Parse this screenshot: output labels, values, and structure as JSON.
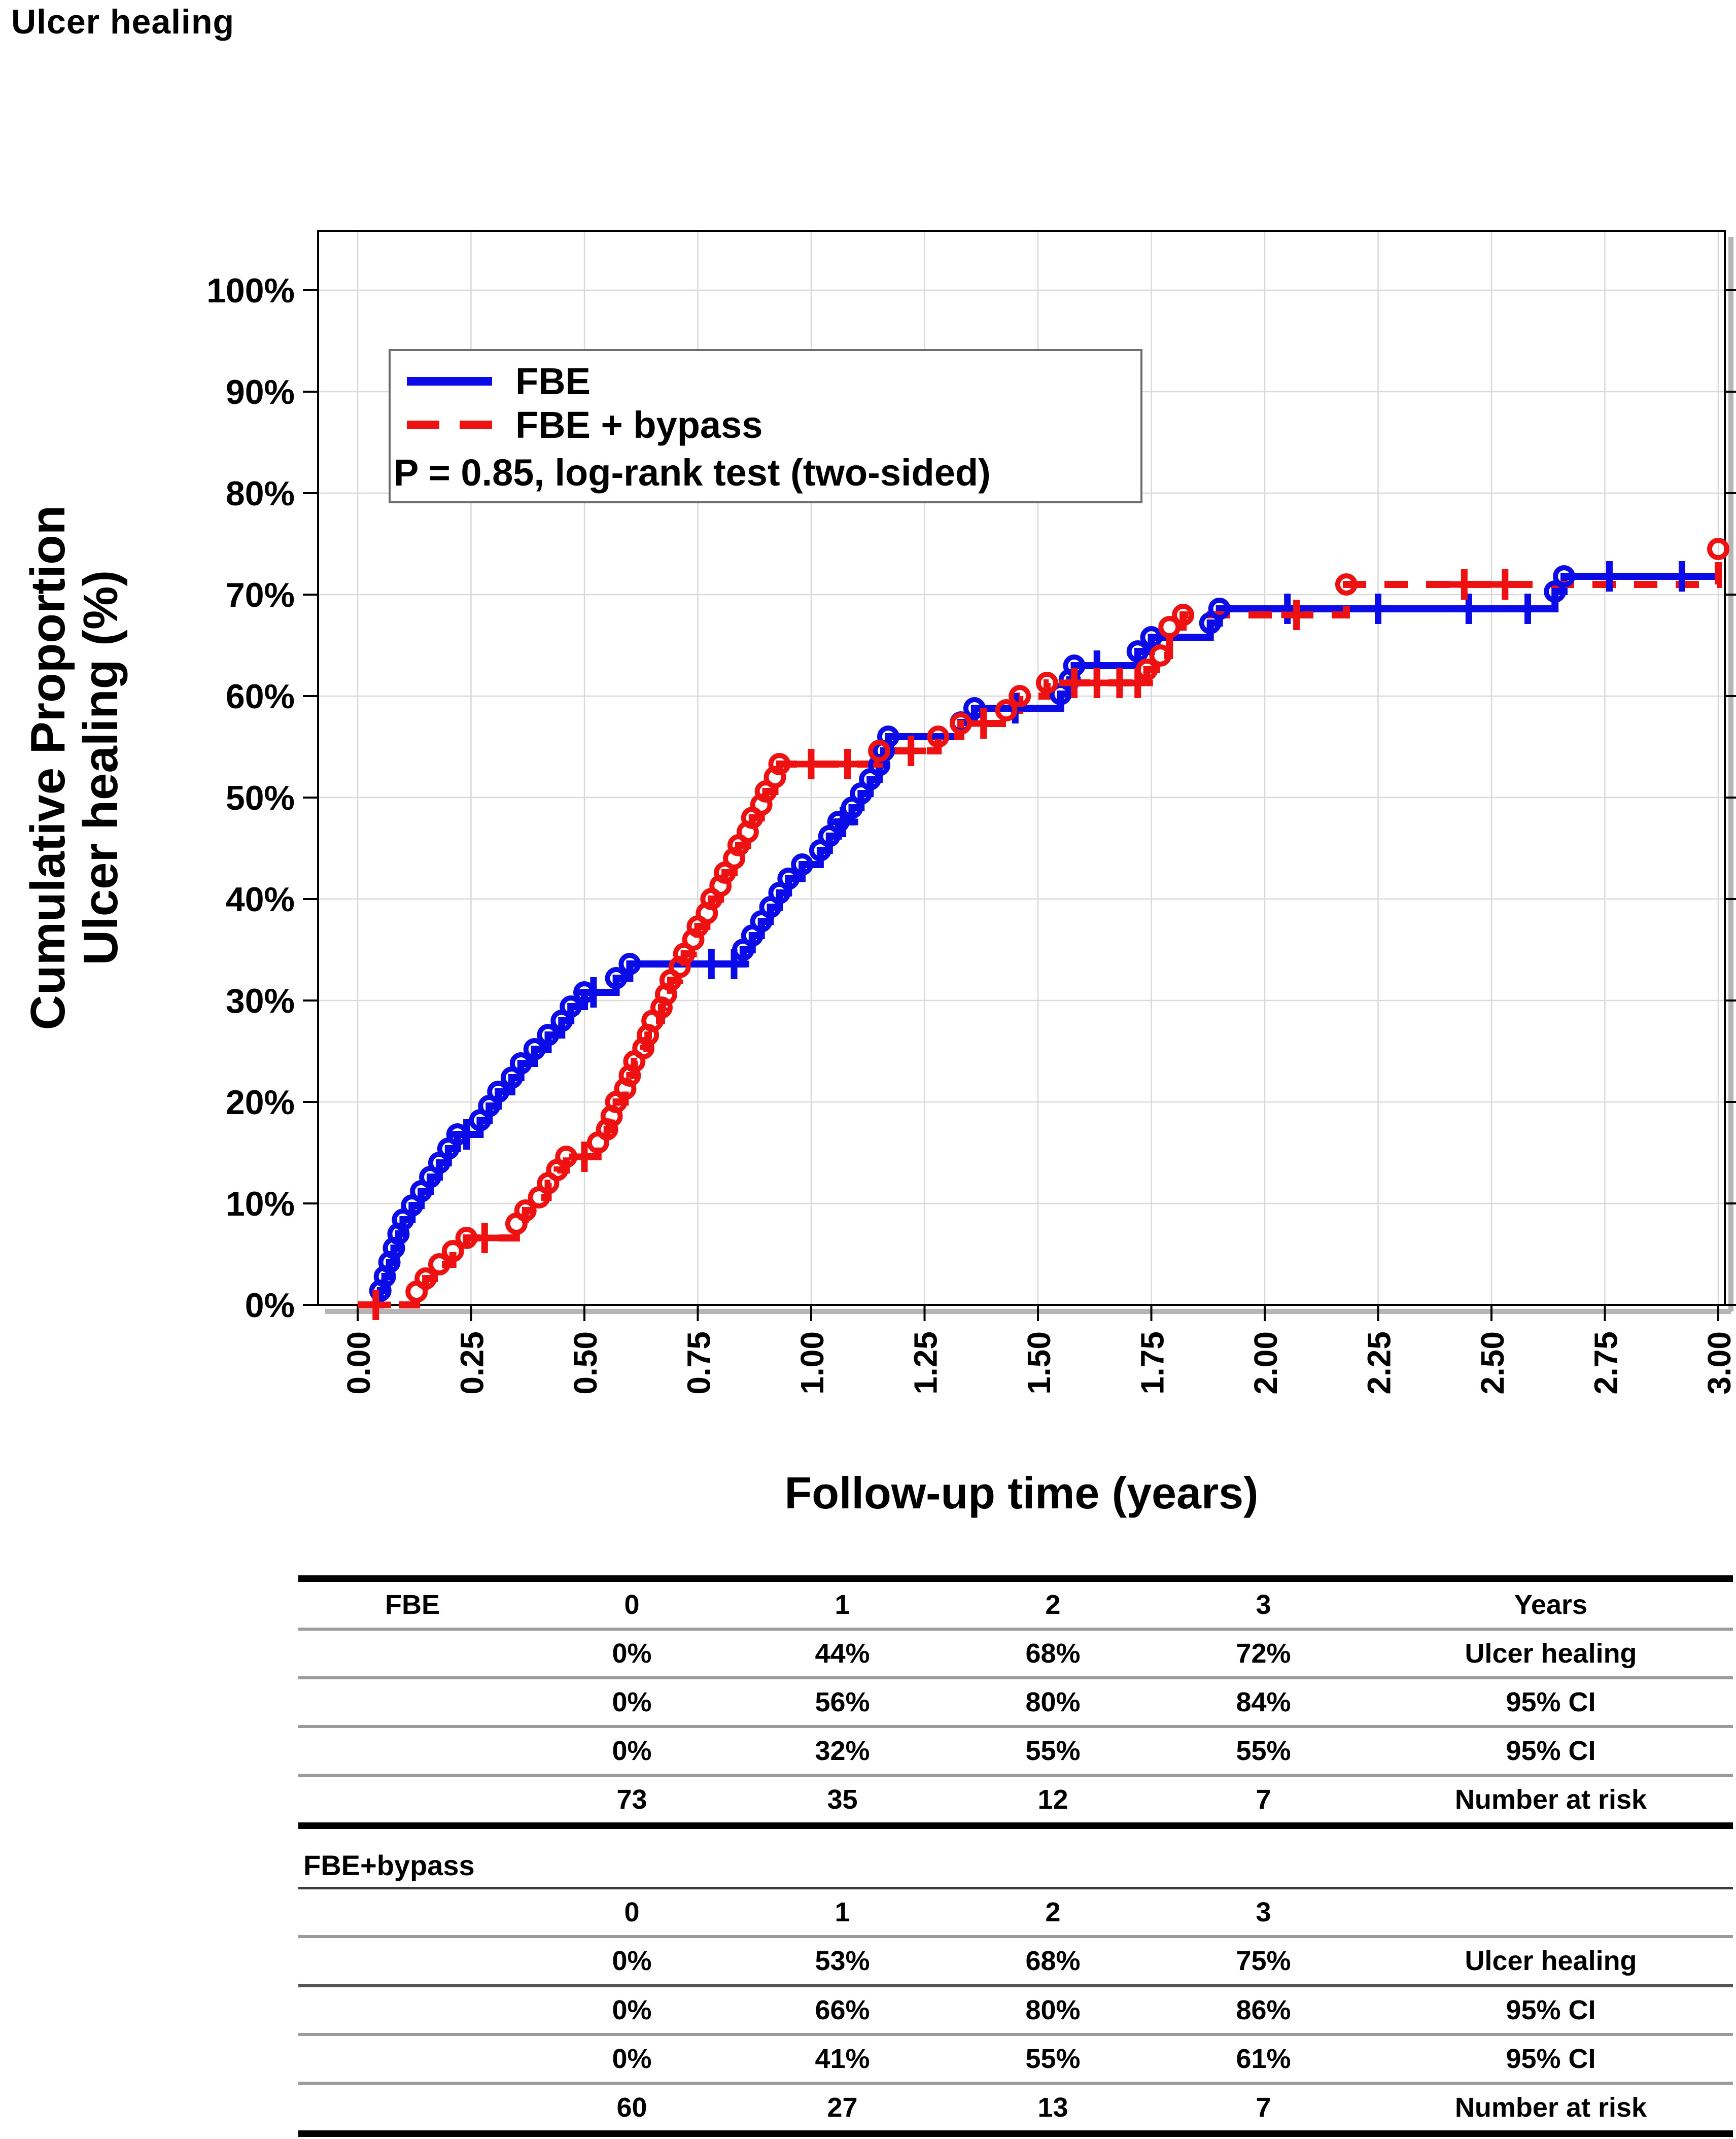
{
  "title": "Ulcer healing",
  "colors": {
    "fbe": "#0b0be8",
    "fbe_bypass": "#ee1111",
    "gridline": "#d9d9d9",
    "frame": "#000000",
    "frame_shadow": "#b5b5b5",
    "table_rule_light": "#9a9a9a",
    "table_rule_dark": "#555555"
  },
  "chart_data": {
    "type": "line",
    "subtype": "kaplan-meier-step",
    "title": "Ulcer healing",
    "xlabel": "Follow-up time (years)",
    "ylabel_line1": "Cumulative Proportion",
    "ylabel_line2": "Ulcer healing (%)",
    "xlim": [
      0,
      3
    ],
    "ylim": [
      0,
      100
    ],
    "grid": true,
    "x_ticks": [
      "0.00",
      "0.25",
      "0.50",
      "0.75",
      "1.00",
      "1.25",
      "1.50",
      "1.75",
      "2.00",
      "2.25",
      "2.50",
      "2.75",
      "3.00"
    ],
    "x_tick_values": [
      0,
      0.25,
      0.5,
      0.75,
      1,
      1.25,
      1.5,
      1.75,
      2,
      2.25,
      2.5,
      2.75,
      3
    ],
    "y_ticks": [
      "0%",
      "10%",
      "20%",
      "30%",
      "40%",
      "50%",
      "60%",
      "70%",
      "80%",
      "90%",
      "100%"
    ],
    "y_tick_values": [
      0,
      10,
      20,
      30,
      40,
      50,
      60,
      70,
      80,
      90,
      100
    ],
    "legend": {
      "position": "upper-left",
      "series": [
        {
          "label": "FBE",
          "style": "solid"
        },
        {
          "label": "FBE + bypass",
          "style": "dashed"
        }
      ],
      "note": "P = 0.85, log-rank test (two-sided)"
    },
    "series": [
      {
        "name": "FBE",
        "style": "solid",
        "marker": "circle",
        "censor_marker": "plus",
        "steps": [
          [
            0.05,
            1.4
          ],
          [
            0.06,
            2.8
          ],
          [
            0.07,
            4.2
          ],
          [
            0.08,
            5.6
          ],
          [
            0.09,
            7.0
          ],
          [
            0.1,
            8.4
          ],
          [
            0.12,
            9.8
          ],
          [
            0.14,
            11.2
          ],
          [
            0.16,
            12.6
          ],
          [
            0.18,
            14.0
          ],
          [
            0.2,
            15.4
          ],
          [
            0.22,
            16.8
          ],
          [
            0.27,
            18.2
          ],
          [
            0.29,
            19.6
          ],
          [
            0.31,
            21.0
          ],
          [
            0.34,
            22.4
          ],
          [
            0.36,
            23.8
          ],
          [
            0.39,
            25.2
          ],
          [
            0.42,
            26.6
          ],
          [
            0.45,
            28.0
          ],
          [
            0.47,
            29.4
          ],
          [
            0.5,
            30.8
          ],
          [
            0.57,
            32.2
          ],
          [
            0.6,
            33.6
          ],
          [
            0.85,
            35.0
          ],
          [
            0.87,
            36.4
          ],
          [
            0.89,
            37.8
          ],
          [
            0.91,
            39.2
          ],
          [
            0.93,
            40.6
          ],
          [
            0.95,
            42.0
          ],
          [
            0.98,
            43.4
          ],
          [
            1.02,
            44.8
          ],
          [
            1.04,
            46.2
          ],
          [
            1.06,
            47.6
          ],
          [
            1.09,
            49.0
          ],
          [
            1.11,
            50.4
          ],
          [
            1.13,
            51.8
          ],
          [
            1.15,
            53.2
          ],
          [
            1.16,
            54.6
          ],
          [
            1.17,
            56.0
          ],
          [
            1.33,
            57.4
          ],
          [
            1.36,
            58.8
          ],
          [
            1.55,
            60.2
          ],
          [
            1.57,
            61.6
          ],
          [
            1.58,
            63.0
          ],
          [
            1.72,
            64.4
          ],
          [
            1.75,
            65.8
          ],
          [
            1.88,
            67.2
          ],
          [
            1.9,
            68.6
          ],
          [
            2.64,
            70.3
          ],
          [
            2.66,
            71.8
          ]
        ],
        "censors": [
          [
            0.24,
            16.8
          ],
          [
            0.52,
            30.8
          ],
          [
            0.78,
            33.6
          ],
          [
            0.83,
            33.6
          ],
          [
            1.07,
            47.6
          ],
          [
            1.45,
            58.8
          ],
          [
            1.63,
            63.0
          ],
          [
            2.05,
            68.6
          ],
          [
            2.25,
            68.6
          ],
          [
            2.45,
            68.6
          ],
          [
            2.58,
            68.6
          ],
          [
            2.76,
            71.8
          ],
          [
            2.92,
            71.8
          ]
        ],
        "key_values": {
          "0": "0%",
          "1": "44%",
          "2": "68%",
          "3": "72%"
        }
      },
      {
        "name": "FBE + bypass",
        "style": "dashed",
        "marker": "circle",
        "censor_marker": "plus",
        "steps": [
          [
            0.13,
            1.3
          ],
          [
            0.15,
            2.6
          ],
          [
            0.18,
            4.0
          ],
          [
            0.21,
            5.3
          ],
          [
            0.24,
            6.6
          ],
          [
            0.35,
            8.0
          ],
          [
            0.37,
            9.3
          ],
          [
            0.4,
            10.6
          ],
          [
            0.42,
            12.0
          ],
          [
            0.44,
            13.3
          ],
          [
            0.46,
            14.6
          ],
          [
            0.53,
            16.0
          ],
          [
            0.55,
            17.3
          ],
          [
            0.56,
            18.6
          ],
          [
            0.57,
            20.0
          ],
          [
            0.59,
            21.3
          ],
          [
            0.6,
            22.6
          ],
          [
            0.61,
            24.0
          ],
          [
            0.63,
            25.3
          ],
          [
            0.64,
            26.6
          ],
          [
            0.65,
            28.0
          ],
          [
            0.67,
            29.3
          ],
          [
            0.68,
            30.6
          ],
          [
            0.69,
            32.0
          ],
          [
            0.71,
            33.3
          ],
          [
            0.72,
            34.6
          ],
          [
            0.74,
            36.0
          ],
          [
            0.75,
            37.3
          ],
          [
            0.77,
            38.6
          ],
          [
            0.78,
            40.0
          ],
          [
            0.8,
            41.3
          ],
          [
            0.81,
            42.6
          ],
          [
            0.83,
            44.0
          ],
          [
            0.84,
            45.3
          ],
          [
            0.86,
            46.6
          ],
          [
            0.87,
            48.0
          ],
          [
            0.89,
            49.3
          ],
          [
            0.9,
            50.6
          ],
          [
            0.92,
            52.0
          ],
          [
            0.93,
            53.3
          ],
          [
            1.15,
            54.6
          ],
          [
            1.28,
            56.0
          ],
          [
            1.33,
            57.3
          ],
          [
            1.43,
            58.6
          ],
          [
            1.46,
            60.0
          ],
          [
            1.52,
            61.3
          ],
          [
            1.74,
            62.6
          ],
          [
            1.77,
            64.0
          ],
          [
            1.79,
            66.8
          ],
          [
            1.82,
            68.0
          ],
          [
            2.18,
            71.0
          ],
          [
            3.0,
            74.5
          ]
        ],
        "censors": [
          [
            0.04,
            0
          ],
          [
            0.28,
            6.6
          ],
          [
            0.5,
            14.6
          ],
          [
            1.0,
            53.3
          ],
          [
            1.08,
            53.3
          ],
          [
            1.22,
            54.6
          ],
          [
            1.38,
            57.3
          ],
          [
            1.58,
            61.3
          ],
          [
            1.63,
            61.3
          ],
          [
            1.68,
            61.3
          ],
          [
            1.72,
            61.3
          ],
          [
            2.07,
            68.0
          ],
          [
            2.44,
            71.0
          ],
          [
            2.53,
            71.0
          ]
        ],
        "key_values": {
          "0": "0%",
          "1": "53%",
          "2": "68%",
          "3": "75%"
        }
      }
    ]
  },
  "table": {
    "blocks": [
      {
        "group_label": "FBE",
        "label_position": "first_row",
        "rows": [
          {
            "values": [
              "0",
              "1",
              "2",
              "3"
            ],
            "label": "Years"
          },
          {
            "values": [
              "0%",
              "44%",
              "68%",
              "72%"
            ],
            "label": "Ulcer healing"
          },
          {
            "values": [
              "0%",
              "56%",
              "80%",
              "84%"
            ],
            "label": "95% CI"
          },
          {
            "values": [
              "0%",
              "32%",
              "55%",
              "55%"
            ],
            "label": "95% CI"
          },
          {
            "values": [
              "73",
              "35",
              "12",
              "7"
            ],
            "label": "Number at risk"
          }
        ]
      },
      {
        "group_label": "FBE+bypass",
        "label_position": "own_row",
        "rows": [
          {
            "values": [
              "0",
              "1",
              "2",
              "3"
            ],
            "label": ""
          },
          {
            "values": [
              "0%",
              "53%",
              "68%",
              "75%"
            ],
            "label": "Ulcer healing"
          },
          {
            "values": [
              "0%",
              "66%",
              "80%",
              "86%"
            ],
            "label": "95% CI"
          },
          {
            "values": [
              "0%",
              "41%",
              "55%",
              "61%"
            ],
            "label": "95% CI"
          },
          {
            "values": [
              "60",
              "27",
              "13",
              "7"
            ],
            "label": "Number at risk"
          }
        ]
      }
    ]
  }
}
